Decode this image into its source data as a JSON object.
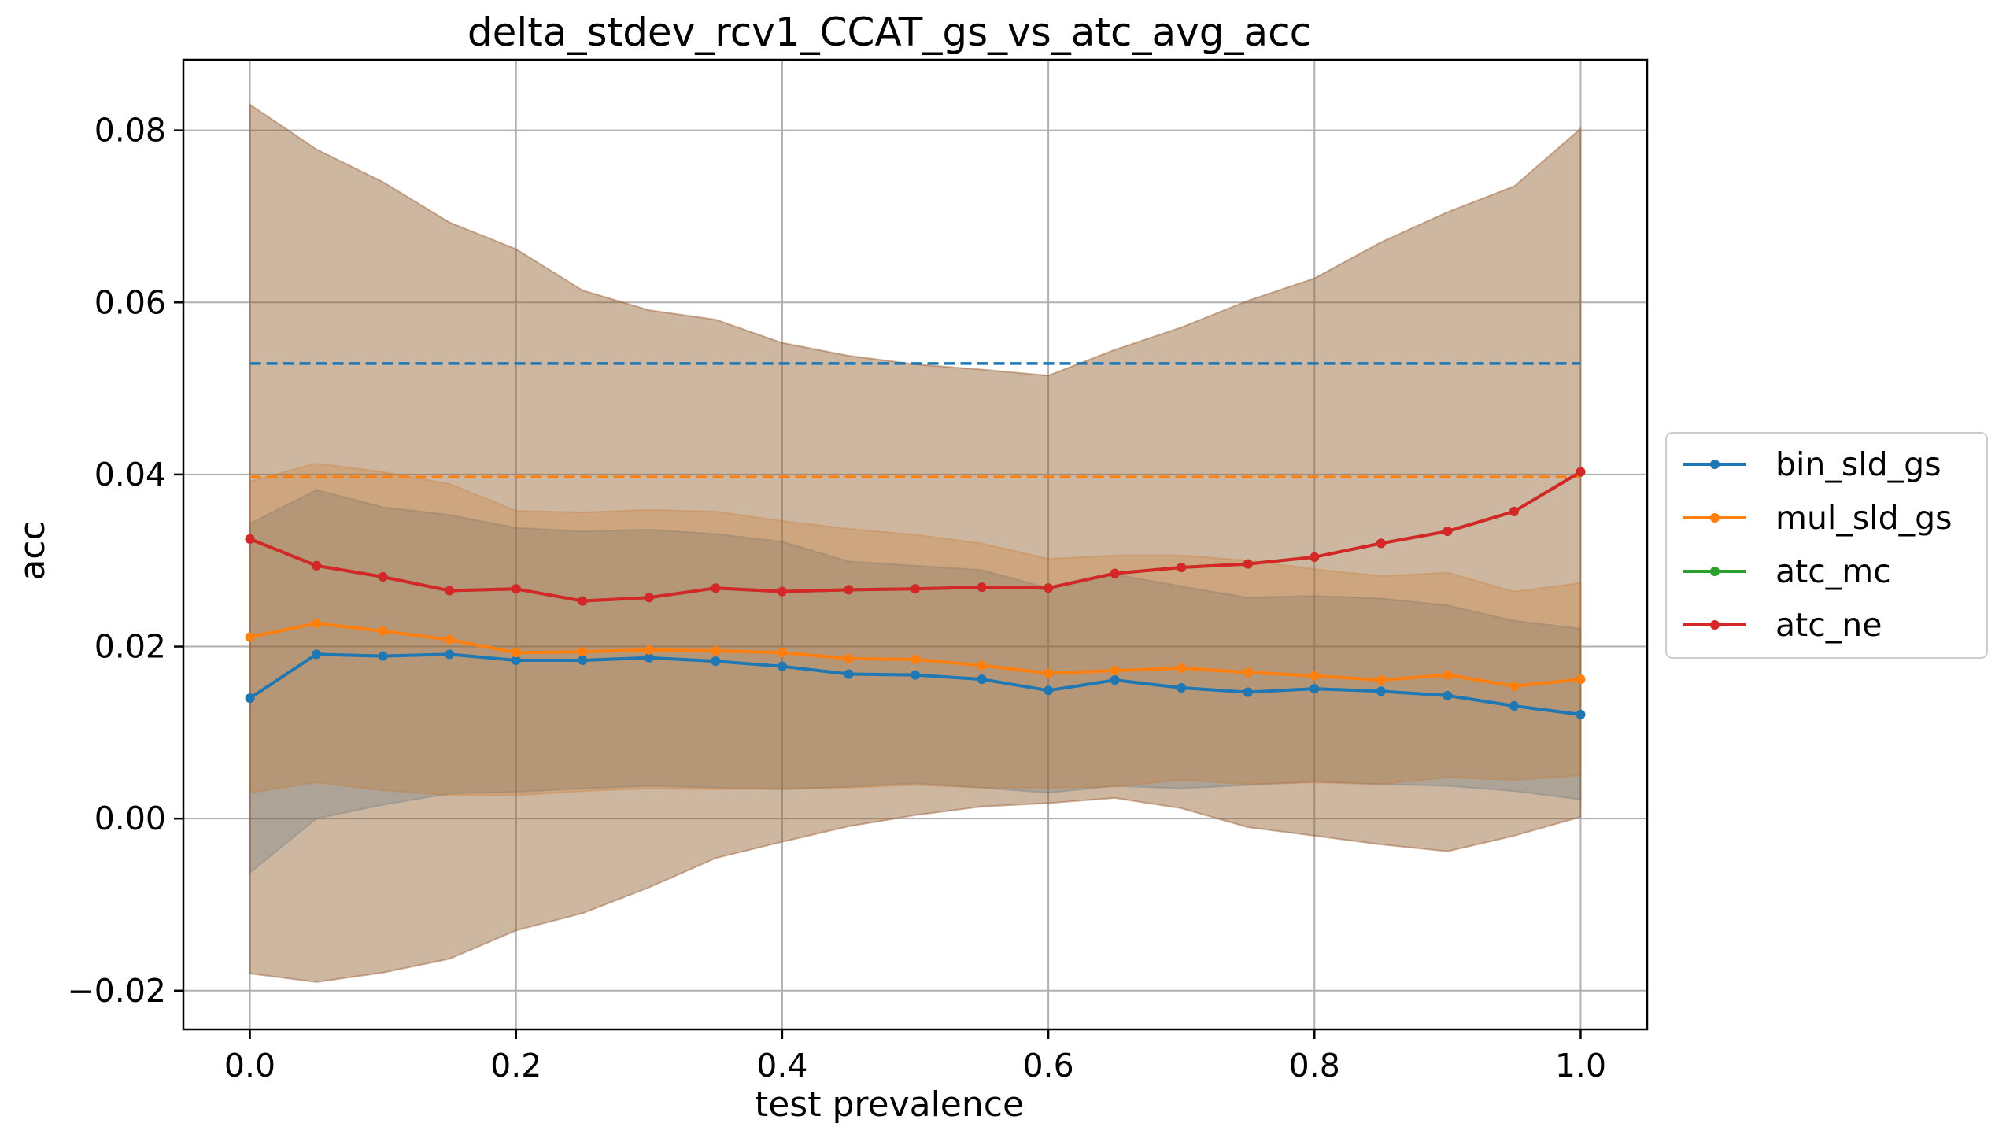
{
  "chart_data": {
    "type": "line",
    "title": "delta_stdev_rcv1_CCAT_gs_vs_atc_avg_acc",
    "xlabel": "test prevalence",
    "ylabel": "acc",
    "xlim": [
      -0.05,
      1.05
    ],
    "ylim": [
      -0.0245,
      0.0882
    ],
    "grid": true,
    "legend_placement": "right",
    "x": [
      0.0,
      0.05,
      0.1,
      0.15,
      0.2,
      0.25,
      0.3,
      0.35,
      0.4,
      0.45,
      0.5,
      0.55,
      0.6,
      0.65,
      0.7,
      0.75,
      0.8,
      0.85,
      0.9,
      0.95,
      1.0
    ],
    "x_ticks": [
      {
        "value": 0.0,
        "label": "0.0"
      },
      {
        "value": 0.2,
        "label": "0.2"
      },
      {
        "value": 0.4,
        "label": "0.4"
      },
      {
        "value": 0.6,
        "label": "0.6"
      },
      {
        "value": 0.8,
        "label": "0.8"
      },
      {
        "value": 1.0,
        "label": "1.0"
      }
    ],
    "y_ticks": [
      {
        "value": -0.02,
        "label": "−0.02"
      },
      {
        "value": 0.0,
        "label": "0.00"
      },
      {
        "value": 0.02,
        "label": "0.02"
      },
      {
        "value": 0.04,
        "label": "0.04"
      },
      {
        "value": 0.06,
        "label": "0.06"
      },
      {
        "value": 0.08,
        "label": "0.08"
      }
    ],
    "series": [
      {
        "name": "bin_sld_gs",
        "color": "#1f77b4",
        "values": [
          0.014,
          0.0191,
          0.0189,
          0.0191,
          0.0184,
          0.0184,
          0.0187,
          0.0183,
          0.0177,
          0.0168,
          0.0167,
          0.0162,
          0.0149,
          0.0161,
          0.0152,
          0.0147,
          0.0151,
          0.0148,
          0.0143,
          0.0131,
          0.0121
        ],
        "band_lower": [
          -0.0063,
          0.0,
          0.0016,
          0.0029,
          0.0031,
          0.0035,
          0.0038,
          0.0036,
          0.0034,
          0.0037,
          0.0041,
          0.0036,
          0.003,
          0.0038,
          0.0035,
          0.0039,
          0.0043,
          0.004,
          0.0038,
          0.0032,
          0.0022
        ],
        "band_upper": [
          0.0343,
          0.0382,
          0.0362,
          0.0353,
          0.0338,
          0.0334,
          0.0336,
          0.0331,
          0.0322,
          0.0299,
          0.0294,
          0.0289,
          0.0268,
          0.0284,
          0.027,
          0.0257,
          0.0259,
          0.0256,
          0.0248,
          0.023,
          0.0221
        ],
        "mean_line": 0.0529
      },
      {
        "name": "mul_sld_gs",
        "color": "#ff7f0e",
        "values": [
          0.0211,
          0.0227,
          0.0218,
          0.0208,
          0.0193,
          0.0194,
          0.0196,
          0.0195,
          0.0193,
          0.0186,
          0.0185,
          0.0178,
          0.0169,
          0.0172,
          0.0175,
          0.017,
          0.0166,
          0.0161,
          0.0167,
          0.0154,
          0.0162
        ],
        "band_lower": [
          0.003,
          0.0042,
          0.0033,
          0.0027,
          0.0027,
          0.0032,
          0.0035,
          0.0034,
          0.0035,
          0.0036,
          0.0039,
          0.0036,
          0.0036,
          0.0037,
          0.0045,
          0.004,
          0.0042,
          0.004,
          0.0048,
          0.0045,
          0.005
        ],
        "band_upper": [
          0.0392,
          0.0413,
          0.0403,
          0.0389,
          0.0358,
          0.0356,
          0.0359,
          0.0357,
          0.0346,
          0.0337,
          0.033,
          0.032,
          0.0302,
          0.0306,
          0.0306,
          0.03,
          0.029,
          0.0282,
          0.0286,
          0.0264,
          0.0274
        ],
        "mean_line": 0.0397
      },
      {
        "name": "atc_mc",
        "color": "#2ca02c",
        "values": [
          0.0325,
          0.0294,
          0.0281,
          0.0265,
          0.0267,
          0.0253,
          0.0257,
          0.0268,
          0.0264,
          0.0266,
          0.0267,
          0.0269,
          0.0268,
          0.0285,
          0.0292,
          0.0296,
          0.0304,
          0.032,
          0.0334,
          0.0357,
          0.0403
        ],
        "band_lower": [
          -0.018,
          -0.019,
          -0.0179,
          -0.0163,
          -0.013,
          -0.011,
          -0.008,
          -0.0046,
          -0.0027,
          -0.0009,
          0.0004,
          0.0014,
          0.0018,
          0.0024,
          0.0012,
          -0.001,
          -0.002,
          -0.003,
          -0.0038,
          -0.002,
          0.0002
        ],
        "band_upper": [
          0.083,
          0.0778,
          0.074,
          0.0693,
          0.0662,
          0.0614,
          0.0591,
          0.058,
          0.0553,
          0.0538,
          0.0528,
          0.0522,
          0.0515,
          0.0545,
          0.0571,
          0.0602,
          0.0628,
          0.067,
          0.0705,
          0.0735,
          0.0802
        ]
      },
      {
        "name": "atc_ne",
        "color": "#d62728",
        "values": [
          0.0325,
          0.0294,
          0.0281,
          0.0265,
          0.0267,
          0.0253,
          0.0257,
          0.0268,
          0.0264,
          0.0266,
          0.0267,
          0.0269,
          0.0268,
          0.0285,
          0.0292,
          0.0296,
          0.0304,
          0.032,
          0.0334,
          0.0357,
          0.0403
        ],
        "band_lower": [
          -0.018,
          -0.019,
          -0.0179,
          -0.0163,
          -0.013,
          -0.011,
          -0.008,
          -0.0046,
          -0.0027,
          -0.0009,
          0.0004,
          0.0014,
          0.0018,
          0.0024,
          0.0012,
          -0.001,
          -0.002,
          -0.003,
          -0.0038,
          -0.002,
          0.0002
        ],
        "band_upper": [
          0.083,
          0.0778,
          0.074,
          0.0693,
          0.0662,
          0.0614,
          0.0591,
          0.058,
          0.0553,
          0.0538,
          0.0528,
          0.0522,
          0.0515,
          0.0545,
          0.0571,
          0.0602,
          0.0628,
          0.067,
          0.0705,
          0.0735,
          0.0802
        ]
      }
    ]
  }
}
